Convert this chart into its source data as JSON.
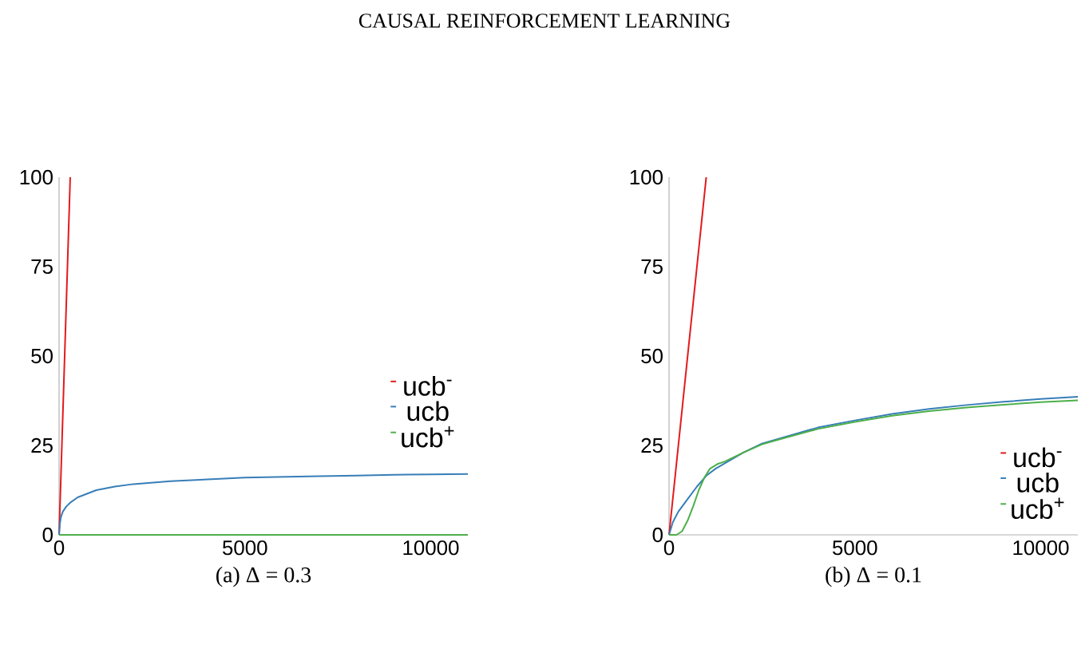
{
  "chart_data": [
    {
      "type": "line",
      "title": "(a) Δ = 0.3",
      "annotations": [
        "CAUSAL REINFORCEMENT LEARNING"
      ],
      "xlim": [
        0,
        11000
      ],
      "ylim": [
        0,
        100
      ],
      "xticks": [
        0,
        5000,
        10000
      ],
      "yticks": [
        0,
        25,
        50,
        75,
        100
      ],
      "legend": "right",
      "series": [
        {
          "name": "ucb$^{-}$",
          "color": "#e31a1c",
          "x": [
            0,
            300
          ],
          "values": [
            0,
            100
          ]
        },
        {
          "name": "ucb",
          "color": "#377eb8",
          "x": [
            0,
            20,
            50,
            100,
            200,
            300,
            500,
            750,
            1000,
            1500,
            2000,
            3000,
            4000,
            5000,
            6000,
            7000,
            8000,
            9000,
            10000,
            11000
          ],
          "values": [
            0,
            3,
            5,
            6.5,
            8,
            9,
            10.5,
            11.5,
            12.5,
            13.5,
            14.2,
            15,
            15.5,
            16,
            16.2,
            16.4,
            16.6,
            16.8,
            16.9,
            17
          ]
        },
        {
          "name": "ucb$^{+}$",
          "color": "#4daf4a",
          "x": [
            0,
            11000
          ],
          "values": [
            0,
            0
          ]
        }
      ]
    },
    {
      "type": "line",
      "title": "(b) Δ = 0.1",
      "xlim": [
        0,
        11000
      ],
      "ylim": [
        0,
        100
      ],
      "xticks": [
        0,
        5000,
        10000
      ],
      "yticks": [
        0,
        25,
        50,
        75,
        100
      ],
      "legend": "bottom right",
      "series": [
        {
          "name": "ucb$^{-}$",
          "color": "#e31a1c",
          "x": [
            0,
            1000
          ],
          "values": [
            0,
            100
          ]
        },
        {
          "name": "ucb",
          "color": "#377eb8",
          "x": [
            0,
            100,
            250,
            500,
            750,
            1000,
            1250,
            1500,
            2000,
            2500,
            3000,
            4000,
            5000,
            6000,
            7000,
            8000,
            9000,
            10000,
            11000
          ],
          "values": [
            0,
            3.5,
            6.5,
            10,
            13.5,
            16.5,
            18.5,
            20,
            23,
            25.5,
            27,
            30,
            32,
            33.8,
            35.2,
            36.3,
            37.2,
            38,
            38.6
          ]
        },
        {
          "name": "ucb$^{+}$",
          "color": "#4daf4a",
          "x": [
            0,
            200,
            350,
            500,
            650,
            800,
            950,
            1100,
            1300,
            1500,
            2000,
            2500,
            3000,
            4000,
            5000,
            6000,
            7000,
            8000,
            9000,
            10000,
            11000
          ],
          "values": [
            0,
            0,
            1,
            4,
            8,
            12.5,
            16,
            18.5,
            19.8,
            20.5,
            23,
            25.3,
            26.8,
            29.6,
            31.6,
            33.3,
            34.6,
            35.6,
            36.4,
            37.1,
            37.6
          ]
        }
      ]
    }
  ]
}
